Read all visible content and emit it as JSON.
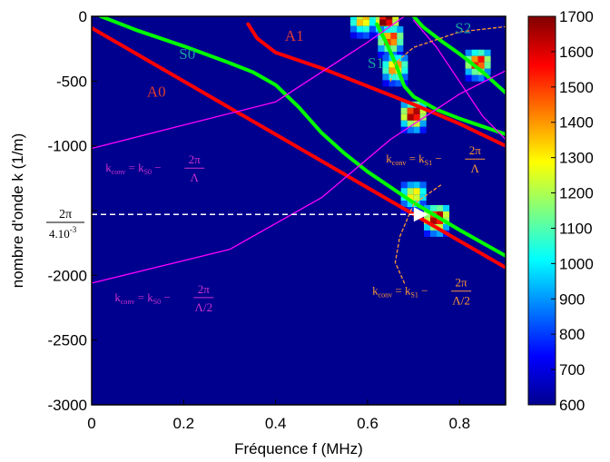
{
  "chart_data": {
    "type": "heatmap",
    "xlabel": "Fréquence f (MHz)",
    "ylabel": "nombre d'onde k (1/m)",
    "xlim": [
      0,
      0.9
    ],
    "ylim": [
      -3000,
      0
    ],
    "x_ticks": [
      "0",
      "0.2",
      "0.4",
      "0.6",
      "0.8"
    ],
    "x_tick_values": [
      0,
      0.2,
      0.4,
      0.6,
      0.8
    ],
    "y_ticks": [
      "0",
      "-500",
      "-1000",
      "-1500",
      "-2000",
      "-2500",
      "-3000"
    ],
    "y_tick_values": [
      0,
      -500,
      -1000,
      -1500,
      -2000,
      -2500,
      -3000
    ],
    "y_tick_label_override": {
      "-1500": ""
    },
    "y_special_label": {
      "num": "2π",
      "den": "4.10",
      "exp": "-3"
    },
    "background": "#00008f",
    "colorbar": {
      "min": 600,
      "max": 1700,
      "ticks": [
        600,
        700,
        800,
        900,
        1000,
        1100,
        1200,
        1300,
        1400,
        1500,
        1600,
        1700
      ]
    },
    "series": [
      {
        "name": "A0",
        "color": "#ff0000",
        "x": [
          0.0,
          0.9
        ],
        "y": [
          -90,
          -1940
        ]
      },
      {
        "name": "A1",
        "color": "#ff0000",
        "x": [
          0.34,
          0.36,
          0.4,
          0.5,
          0.6,
          0.7,
          0.8,
          0.9
        ],
        "y": [
          -60,
          -170,
          -280,
          -400,
          -540,
          -680,
          -830,
          -1000
        ]
      },
      {
        "name": "S0",
        "color": "#00ff00",
        "x": [
          0.02,
          0.1,
          0.2,
          0.3,
          0.35,
          0.4,
          0.45,
          0.5,
          0.55,
          0.6,
          0.7,
          0.8,
          0.9
        ],
        "y": [
          0,
          -110,
          -230,
          -360,
          -430,
          -530,
          -700,
          -900,
          -1060,
          -1200,
          -1440,
          -1650,
          -1850
        ]
      },
      {
        "name": "S1",
        "color": "#00ff00",
        "x": [
          0.62,
          0.64,
          0.66,
          0.68,
          0.7,
          0.75,
          0.8,
          0.85,
          0.9
        ],
        "y": [
          -60,
          -200,
          -360,
          -540,
          -620,
          -720,
          -790,
          -850,
          -910
        ]
      },
      {
        "name": "S2",
        "color": "#00ff00",
        "x": [
          0.7,
          0.72,
          0.76,
          0.8,
          0.85,
          0.9
        ],
        "y": [
          0,
          -80,
          -190,
          -290,
          -430,
          -590
        ]
      },
      {
        "name": "",
        "color": "#ff00ff",
        "x": [
          0.0,
          0.2,
          0.4,
          0.6,
          0.68
        ],
        "y": [
          -1020,
          -840,
          -660,
          -200,
          0
        ]
      },
      {
        "name": "",
        "color": "#ff00ff",
        "x": [
          0.0,
          0.3,
          0.5,
          0.65,
          0.8,
          0.9
        ],
        "y": [
          -2060,
          -1800,
          -1400,
          -950,
          -600,
          -420
        ]
      },
      {
        "name": "",
        "color": "#ff00ff",
        "x": [
          0.7,
          0.75,
          0.85,
          0.9
        ],
        "y": [
          -30,
          -240,
          -770,
          -950
        ]
      },
      {
        "name": "",
        "color": "#ff9933",
        "dashed": true,
        "x": [
          0.65,
          0.66,
          0.7,
          0.8,
          0.9
        ],
        "y": [
          -500,
          -360,
          -240,
          -120,
          -80
        ]
      },
      {
        "name": "",
        "color": "#ff9933",
        "dashed": true,
        "x": [
          0.68,
          0.66,
          0.67,
          0.7,
          0.76
        ],
        "y": [
          -2060,
          -1900,
          -1700,
          -1450,
          -1300
        ]
      }
    ],
    "hot_spots": [
      {
        "x": 0.64,
        "y": -50,
        "value": 1700
      },
      {
        "x": 0.59,
        "y": -50,
        "value": 1350
      },
      {
        "x": 0.65,
        "y": -200,
        "value": 1500
      },
      {
        "x": 0.66,
        "y": -420,
        "value": 1400
      },
      {
        "x": 0.7,
        "y": -780,
        "value": 1650
      },
      {
        "x": 0.84,
        "y": -380,
        "value": 1550
      },
      {
        "x": 0.7,
        "y": -1400,
        "value": 1300
      },
      {
        "x": 0.75,
        "y": -1580,
        "value": 1650
      }
    ],
    "curve_labels": [
      {
        "text": "A0",
        "color": "#e03c2f",
        "x": 0.12,
        "y": -620
      },
      {
        "text": "A1",
        "color": "#e03c2f",
        "x": 0.42,
        "y": -190
      },
      {
        "text": "S0",
        "color": "#1aa0a0",
        "x": 0.19,
        "y": -330
      },
      {
        "text": "S1",
        "color": "#1aa0a0",
        "x": 0.6,
        "y": -400
      },
      {
        "text": "S2",
        "color": "#1aa0a0",
        "x": 0.79,
        "y": -130
      }
    ],
    "reference_line": {
      "y": -1530,
      "color": "#ffffff",
      "marker_x": 0.72
    },
    "annotations": [
      {
        "id": "s0_lambda",
        "color": "#cc33cc",
        "x": 0.03,
        "y": -1200,
        "lhs": "k",
        "lhs_sub": "conv",
        "k": "k",
        "k_sub": "S0",
        "num": "2π",
        "den": "Λ"
      },
      {
        "id": "s1_lambda",
        "color": "#ff9933",
        "x": 0.64,
        "y": -1130,
        "lhs": "k",
        "lhs_sub": "conv",
        "k": "k",
        "k_sub": "S1",
        "num": "2π",
        "den": "Λ"
      },
      {
        "id": "s0_half",
        "color": "#cc33cc",
        "x": 0.05,
        "y": -2200,
        "lhs": "k",
        "lhs_sub": "conv",
        "k": "k",
        "k_sub": "S0",
        "num": "2π",
        "den": "Λ/2"
      },
      {
        "id": "s1_half",
        "color": "#ff9933",
        "x": 0.61,
        "y": -2150,
        "lhs": "k",
        "lhs_sub": "conv",
        "k": "k",
        "k_sub": "S1",
        "num": "2π",
        "den": "Λ/2"
      }
    ]
  }
}
